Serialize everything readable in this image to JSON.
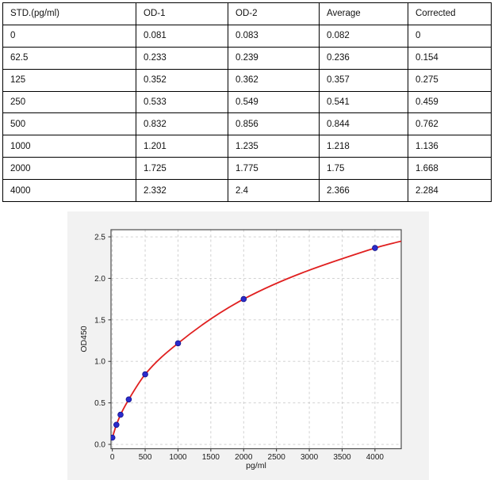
{
  "table": {
    "headers": [
      "STD.(pg/ml)",
      "OD-1",
      "OD-2",
      "Average",
      "Corrected"
    ],
    "rows": [
      [
        "0",
        "0.081",
        "0.083",
        "0.082",
        "0"
      ],
      [
        "62.5",
        "0.233",
        "0.239",
        "0.236",
        "0.154"
      ],
      [
        "125",
        "0.352",
        "0.362",
        "0.357",
        "0.275"
      ],
      [
        "250",
        "0.533",
        "0.549",
        "0.541",
        "0.459"
      ],
      [
        "500",
        "0.832",
        "0.856",
        "0.844",
        "0.762"
      ],
      [
        "1000",
        "1.201",
        "1.235",
        "1.218",
        "1.136"
      ],
      [
        "2000",
        "1.725",
        "1.775",
        "1.75",
        "1.668"
      ],
      [
        "4000",
        "2.332",
        "2.4",
        "2.366",
        "2.284"
      ]
    ]
  },
  "chart_data": {
    "type": "scatter",
    "title": "",
    "xlabel": "pg/ml",
    "ylabel": "OD450",
    "x": [
      0,
      62.5,
      125,
      250,
      500,
      1000,
      2000,
      4000
    ],
    "y": [
      0.082,
      0.236,
      0.357,
      0.541,
      0.844,
      1.218,
      1.75,
      2.366
    ],
    "fit": {
      "type": "smooth-curve-through-points",
      "end_x": 4400,
      "end_y": 2.448
    },
    "xticks": {
      "values": [
        0,
        500,
        1000,
        1500,
        2000,
        2500,
        3000,
        3500,
        4000
      ],
      "labels": [
        "0",
        "500",
        "1000",
        "1500",
        "2000",
        "2500",
        "3000",
        "3500",
        "4000"
      ]
    },
    "yticks": {
      "values": [
        0,
        0.5,
        1.0,
        1.5,
        2.0,
        2.5
      ],
      "labels": [
        "0.0",
        "0.5",
        "1.0",
        "1.5",
        "2.0",
        "2.5"
      ]
    },
    "xlim": [
      -20,
      4400
    ],
    "ylim": [
      -0.052,
      2.586
    ],
    "grid": "dashed",
    "legend": "none",
    "colors": {
      "curve": "#e02020",
      "point_fill": "#2b2bcc",
      "point_edge": "#15158a",
      "grid": "#cccccc",
      "spine": "#4d4d4d",
      "tick": "#333333",
      "text": "#1a1a1a",
      "plot_bg": "#ffffff",
      "panel_bg": "#f2f2f2"
    }
  }
}
